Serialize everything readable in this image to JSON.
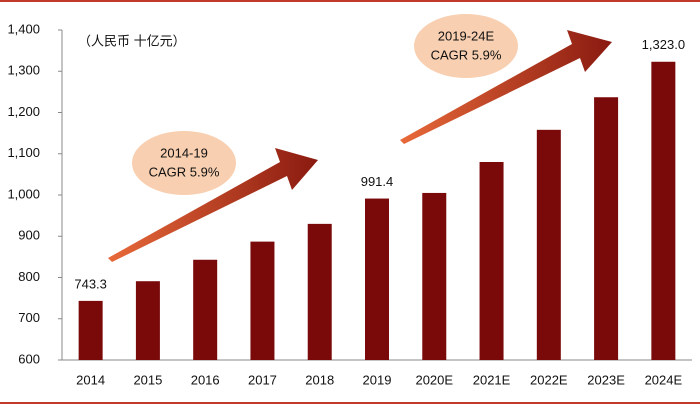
{
  "chart_data": {
    "type": "bar",
    "unit_label": "（人民币 十亿元）",
    "annotations": [
      [
        "2014-19",
        "CAGR 5.9%"
      ],
      [
        "2019-24E",
        "CAGR 5.9%"
      ]
    ],
    "categories": [
      "2014",
      "2015",
      "2016",
      "2017",
      "2018",
      "2019",
      "2020E",
      "2021E",
      "2022E",
      "2023E",
      "2024E"
    ],
    "values": [
      743.3,
      791,
      843,
      887,
      930,
      991.4,
      1005,
      1080,
      1158,
      1237,
      1323.0
    ],
    "value_labels": [
      "743.3",
      null,
      null,
      null,
      null,
      "991.4",
      null,
      null,
      null,
      null,
      "1,323.0"
    ],
    "color": "#7a0a0a",
    "ylim": [
      600,
      1400
    ],
    "yticks": [
      600,
      700,
      800,
      900,
      {
        "value": 1000,
        "label": "1,000"
      },
      {
        "value": 1100,
        "label": "1,100"
      },
      {
        "value": 1200,
        "label": "1,200"
      },
      {
        "value": 1300,
        "label": "1,300"
      },
      {
        "value": 1400,
        "label": "1,400"
      }
    ],
    "grid": false
  }
}
